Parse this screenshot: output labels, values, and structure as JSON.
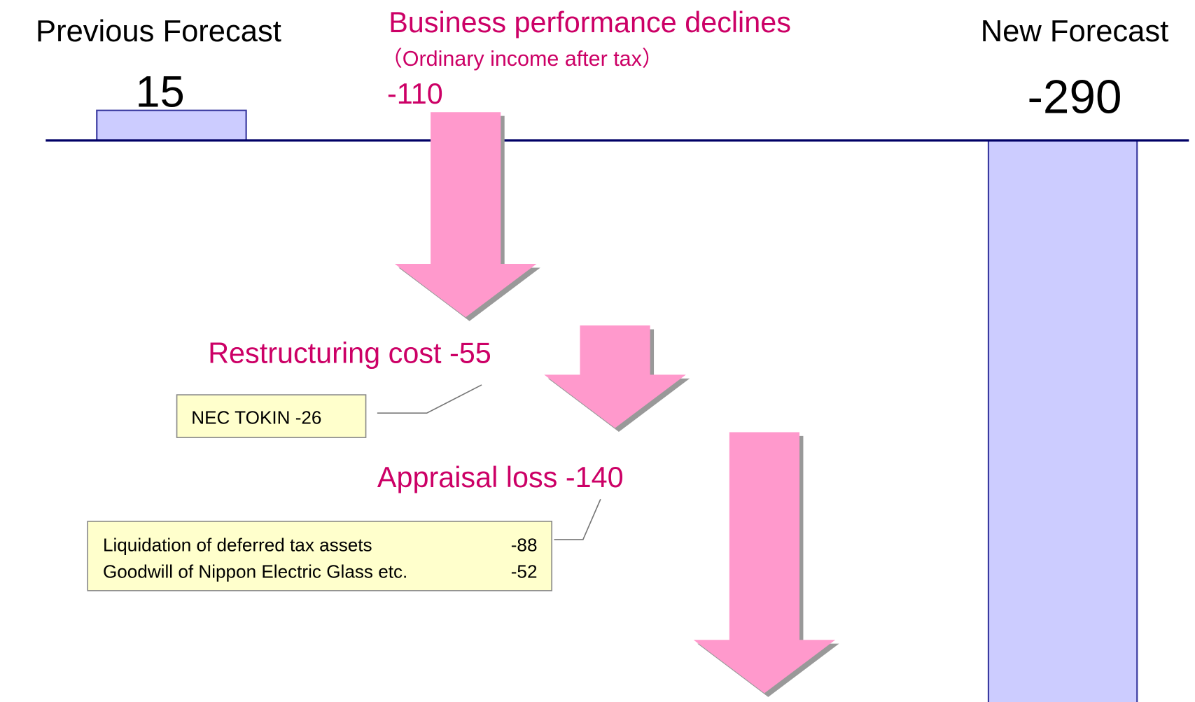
{
  "chart_data": {
    "type": "waterfall",
    "categories": [
      "Previous Forecast",
      "Business performance declines",
      "Restructuring cost",
      "Appraisal loss",
      "New Forecast"
    ],
    "values": [
      15,
      -110,
      -55,
      -140,
      -290
    ],
    "subtitle": "（Ordinary income after tax）",
    "bar_color": "#ccccff",
    "arrow_color": "#ff99cc",
    "ylim": [
      -280,
      70
    ],
    "annotations": [
      {
        "text": "NEC TOKIN -26"
      },
      {
        "rows": [
          [
            "Liquidation of deferred tax assets",
            "-88"
          ],
          [
            "Goodwill of Nippon Electric Glass etc.",
            "-52"
          ]
        ]
      }
    ]
  }
}
